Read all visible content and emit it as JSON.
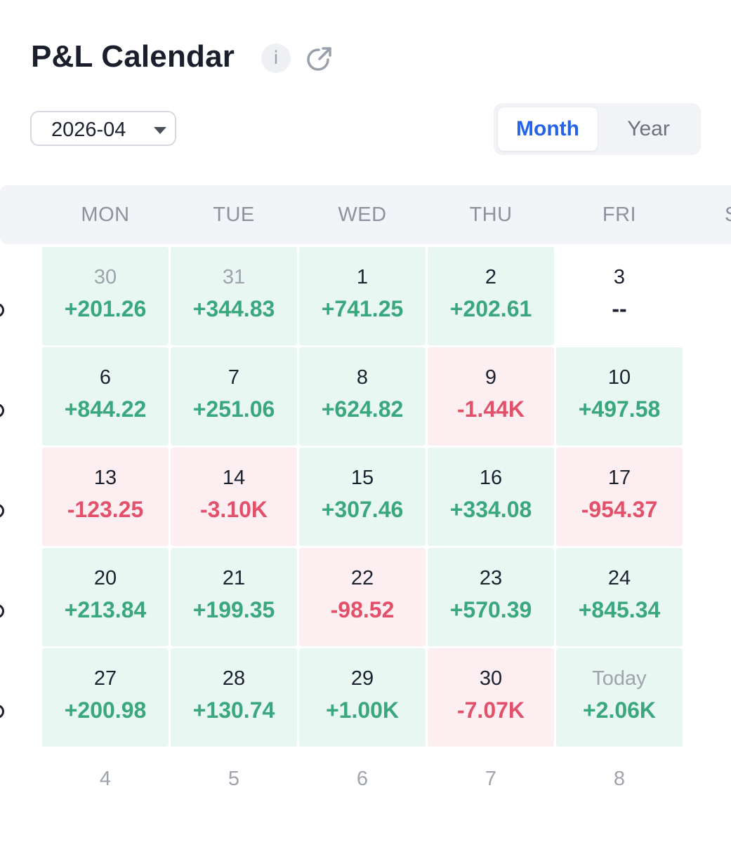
{
  "header": {
    "title": "P&L Calendar",
    "info_icon": "i"
  },
  "controls": {
    "date_value": "2026-04",
    "view_options": [
      {
        "label": "Month",
        "active": true
      },
      {
        "label": "Year",
        "active": false
      }
    ]
  },
  "calendar": {
    "weekdays": [
      "MON",
      "TUE",
      "WED",
      "THU",
      "FRI"
    ],
    "weekday_partial": "S",
    "weeks": [
      [
        {
          "day": "30",
          "pnl": "+201.26",
          "status": "pos",
          "outside": true
        },
        {
          "day": "31",
          "pnl": "+344.83",
          "status": "pos",
          "outside": true
        },
        {
          "day": "1",
          "pnl": "+741.25",
          "status": "pos"
        },
        {
          "day": "2",
          "pnl": "+202.61",
          "status": "pos"
        },
        {
          "day": "3",
          "pnl": "--",
          "status": "none"
        }
      ],
      [
        {
          "day": "6",
          "pnl": "+844.22",
          "status": "pos"
        },
        {
          "day": "7",
          "pnl": "+251.06",
          "status": "pos"
        },
        {
          "day": "8",
          "pnl": "+624.82",
          "status": "pos"
        },
        {
          "day": "9",
          "pnl": "-1.44K",
          "status": "neg"
        },
        {
          "day": "10",
          "pnl": "+497.58",
          "status": "pos"
        }
      ],
      [
        {
          "day": "13",
          "pnl": "-123.25",
          "status": "neg"
        },
        {
          "day": "14",
          "pnl": "-3.10K",
          "status": "neg"
        },
        {
          "day": "15",
          "pnl": "+307.46",
          "status": "pos"
        },
        {
          "day": "16",
          "pnl": "+334.08",
          "status": "pos"
        },
        {
          "day": "17",
          "pnl": "-954.37",
          "status": "neg"
        }
      ],
      [
        {
          "day": "20",
          "pnl": "+213.84",
          "status": "pos"
        },
        {
          "day": "21",
          "pnl": "+199.35",
          "status": "pos"
        },
        {
          "day": "22",
          "pnl": "-98.52",
          "status": "neg"
        },
        {
          "day": "23",
          "pnl": "+570.39",
          "status": "pos"
        },
        {
          "day": "24",
          "pnl": "+845.34",
          "status": "pos"
        }
      ],
      [
        {
          "day": "27",
          "pnl": "+200.98",
          "status": "pos"
        },
        {
          "day": "28",
          "pnl": "+130.74",
          "status": "pos"
        },
        {
          "day": "29",
          "pnl": "+1.00K",
          "status": "pos"
        },
        {
          "day": "30",
          "pnl": "-7.07K",
          "status": "neg"
        },
        {
          "day": "Today",
          "pnl": "+2.06K",
          "status": "pos",
          "today": true
        }
      ]
    ],
    "next_row": [
      "4",
      "5",
      "6",
      "7",
      "8"
    ]
  },
  "colors": {
    "positive": "#3aa77e",
    "negative": "#e2506a",
    "accent": "#2563eb"
  }
}
